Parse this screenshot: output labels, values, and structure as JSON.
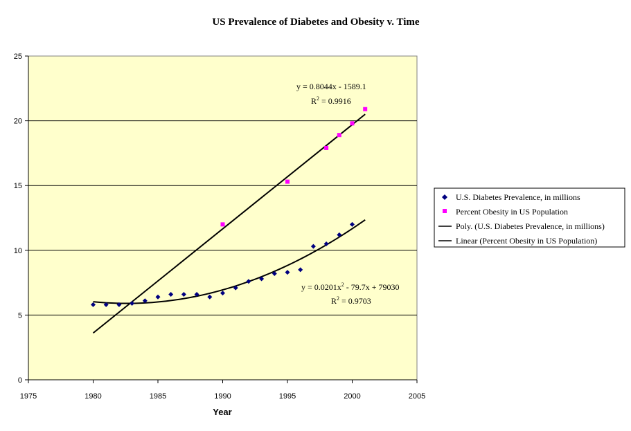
{
  "chart_data": {
    "type": "scatter",
    "title": "US Prevalence of Diabetes and Obesity v. Time",
    "xlabel": "Year",
    "ylabel": "",
    "xlim": [
      1975,
      2005
    ],
    "ylim": [
      0,
      25
    ],
    "x_ticks": [
      1975,
      1980,
      1985,
      1990,
      1995,
      2000,
      2005
    ],
    "y_ticks": [
      0,
      5,
      10,
      15,
      20,
      25
    ],
    "grid": "horizontal major gridlines",
    "plot_background": "#ffffcc",
    "legend_position": "right",
    "series": [
      {
        "name": "U.S. Diabetes Prevalence, in millions",
        "kind": "points",
        "marker": "diamond",
        "color": "#000080",
        "x": [
          1980,
          1981,
          1982,
          1983,
          1984,
          1985,
          1986,
          1987,
          1988,
          1989,
          1990,
          1991,
          1992,
          1993,
          1994,
          1995,
          1996,
          1997,
          1998,
          1999,
          2000
        ],
        "y": [
          5.8,
          5.8,
          5.8,
          5.9,
          6.1,
          6.4,
          6.6,
          6.6,
          6.6,
          6.4,
          6.7,
          7.1,
          7.6,
          7.8,
          8.2,
          8.3,
          8.5,
          10.3,
          10.5,
          11.2,
          12.0
        ]
      },
      {
        "name": "Percent Obesity in US Population",
        "kind": "points",
        "marker": "square",
        "color": "#ff00ff",
        "x": [
          1990,
          1995,
          1998,
          1999,
          2000,
          2001
        ],
        "y": [
          12.0,
          15.3,
          17.9,
          18.9,
          19.8,
          20.9
        ]
      },
      {
        "name": "Poly. (U.S. Diabetes Prevalence, in millions)",
        "kind": "trendline",
        "fit": "polynomial",
        "color": "#000000",
        "x_range": [
          1980,
          2001
        ],
        "equation": "y = 0.0201x² - 79.7x + 79030",
        "equation_main": "y = 0.0201x",
        "equation_exp": "2",
        "equation_rest": " - 79.7x + 79030",
        "r2": "R² = 0.9703",
        "r2_main": "R",
        "r2_exp": "2",
        "r2_rest": " = 0.9703",
        "vertex_year": 1982.6,
        "vertex_value": 5.9,
        "end_year": 2001,
        "end_value": 12.35
      },
      {
        "name": "Linear (Percent Obesity in US Population)",
        "kind": "trendline",
        "fit": "linear",
        "color": "#000000",
        "x_range": [
          1980,
          2001
        ],
        "equation": "y = 0.8044x - 1589.1",
        "r2": "R² = 0.9916",
        "r2_main": "R",
        "r2_exp": "2",
        "r2_rest": " = 0.9916",
        "slope": 0.8044,
        "intercept": -1589.1
      }
    ]
  }
}
